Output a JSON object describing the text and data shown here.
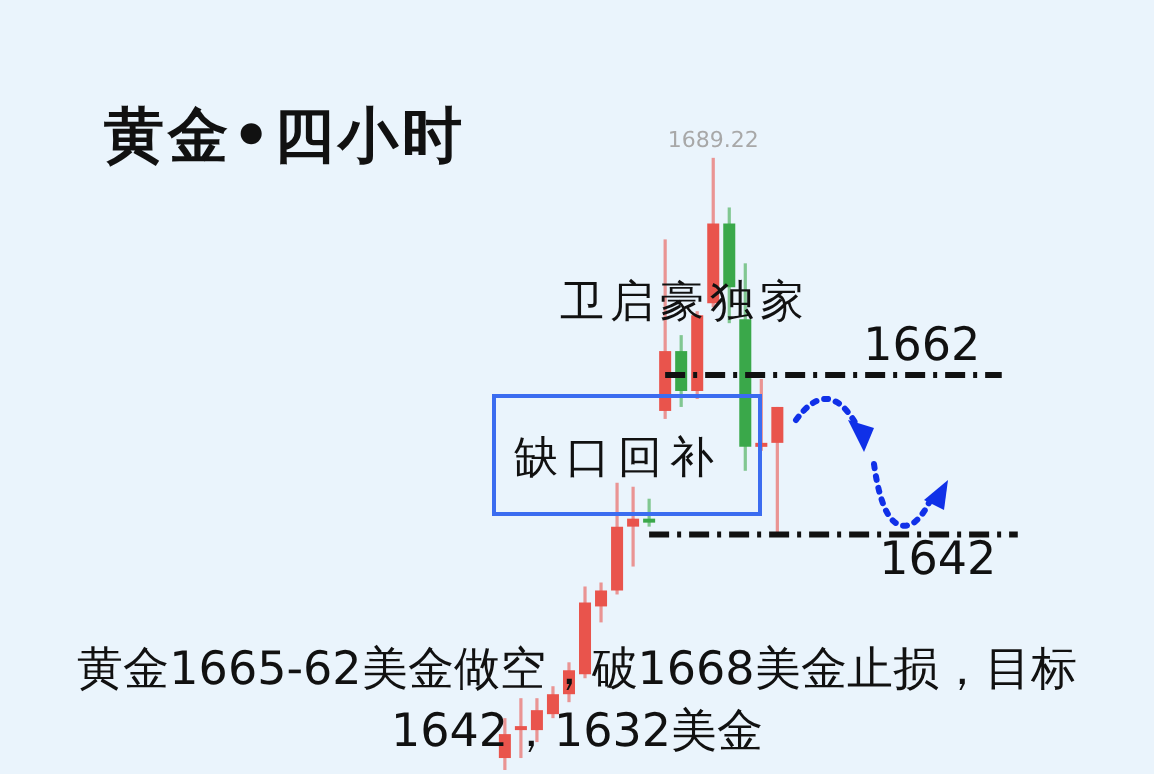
{
  "chart_data": {
    "type": "candlestick",
    "title": "黄金•四小时",
    "categories": [
      null,
      null,
      null,
      null,
      null,
      null,
      null,
      null,
      null,
      null,
      null,
      null,
      null,
      null,
      null,
      null,
      null,
      null,
      null,
      null,
      null,
      null,
      null,
      null,
      null,
      null,
      null,
      null,
      null,
      null,
      null,
      null,
      null,
      null,
      null,
      null,
      null,
      null,
      null,
      null,
      null,
      null,
      null,
      null,
      null,
      null,
      null,
      null,
      null,
      null,
      null,
      null,
      null,
      null,
      null,
      null,
      null,
      null,
      null,
      null,
      null,
      null,
      null,
      null,
      null,
      null,
      null,
      null,
      null,
      null,
      null,
      null
    ],
    "ohlc": [
      null,
      null,
      null,
      null,
      null,
      null,
      null,
      null,
      null,
      null,
      null,
      null,
      null,
      null,
      null,
      null,
      null,
      null,
      null,
      null,
      null,
      null,
      null,
      null,
      null,
      null,
      null,
      null,
      null,
      null,
      null,
      [
        1614,
        1619,
        1612.5,
        1617
      ],
      [
        1617.5,
        1621.5,
        1614,
        1618
      ],
      [
        1617.5,
        1621.5,
        1616,
        1620
      ],
      [
        1619.5,
        1623,
        1619,
        1622
      ],
      [
        1622,
        1626,
        1621,
        1625
      ],
      [
        1624.5,
        1635.5,
        1624,
        1633.5
      ],
      [
        1633,
        1636,
        1631,
        1635
      ],
      [
        1635,
        1648.5,
        1634.5,
        1643
      ],
      [
        1643,
        1648,
        1638,
        1644
      ],
      [
        1644,
        1646.5,
        1643,
        1643.5
      ],
      [
        1657.5,
        1679,
        1656.5,
        1665
      ],
      [
        1665,
        1667,
        1658,
        1660
      ],
      [
        1660,
        1670,
        1659,
        1669.5
      ],
      [
        1671,
        1689.22,
        1670.5,
        1681
      ],
      [
        1681,
        1683,
        1668.5,
        1673
      ],
      [
        1669,
        1676,
        1650,
        1653
      ],
      [
        1653,
        1661.5,
        1652.5,
        1653.5
      ],
      [
        1653.5,
        1658,
        1642,
        1658
      ],
      null,
      null,
      null,
      null,
      null,
      null,
      null,
      null,
      null,
      null,
      null,
      null,
      null,
      null,
      null,
      null,
      null,
      null,
      null,
      null,
      null,
      null,
      null
    ],
    "colors": [
      null,
      null,
      null,
      null,
      null,
      null,
      null,
      null,
      null,
      null,
      null,
      null,
      null,
      null,
      null,
      null,
      null,
      null,
      null,
      null,
      null,
      null,
      null,
      null,
      null,
      null,
      null,
      null,
      null,
      null,
      null,
      "#e9544c",
      "#e9544c",
      "#e9544c",
      "#e9544c",
      "#e9544c",
      "#e9544c",
      "#e9544c",
      "#e9544c",
      "#e9544c",
      "#3aa84a",
      "#e9544c",
      "#3aa84a",
      "#e9544c",
      "#e9544c",
      "#3aa84a",
      "#3aa84a",
      "#e9544c",
      "#e9544c",
      null,
      null,
      null,
      null,
      null,
      null,
      null,
      null,
      null,
      null,
      null,
      null,
      null,
      null,
      null,
      null,
      null,
      null,
      null,
      null,
      null,
      null,
      null
    ],
    "ylim": [
      1612,
      1709
    ],
    "ref_lines": [
      {
        "axis": "y",
        "value": 1662,
        "label": "1662",
        "color": "#111111",
        "line_style": "dashdot"
      },
      {
        "axis": "y",
        "value": 1642,
        "label": "1642",
        "color": "#111111",
        "line_style": "dashdot"
      }
    ],
    "annotations": [
      "卫启豪独家",
      "缺口回补",
      "黄金1665-62美金做空，破1668美金止损，目标1642，1632美金",
      {
        "text": "1689.22",
        "y": 1689.22
      }
    ]
  }
}
